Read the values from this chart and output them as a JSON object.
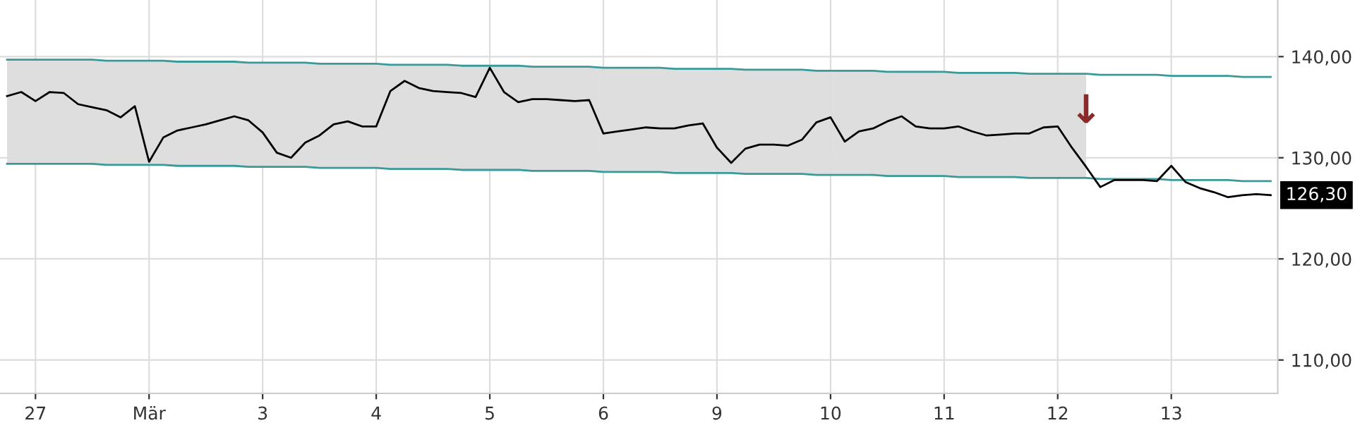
{
  "chart_data": {
    "type": "line",
    "ylim": [
      106.7,
      145.6
    ],
    "categories": [
      null,
      null,
      "27",
      null,
      null,
      null,
      null,
      null,
      null,
      null,
      "Mär",
      null,
      null,
      null,
      null,
      null,
      null,
      null,
      "3",
      null,
      null,
      null,
      null,
      null,
      null,
      null,
      "4",
      null,
      null,
      null,
      null,
      null,
      null,
      null,
      "5",
      null,
      null,
      null,
      null,
      null,
      null,
      null,
      "6",
      null,
      null,
      null,
      null,
      null,
      null,
      null,
      "9",
      null,
      null,
      null,
      null,
      null,
      null,
      null,
      "10",
      null,
      null,
      null,
      null,
      null,
      null,
      null,
      "11",
      null,
      null,
      null,
      null,
      null,
      null,
      null,
      "12",
      null,
      null,
      null,
      null,
      null,
      null,
      null,
      "13",
      null,
      null,
      null,
      null,
      null,
      null,
      null
    ],
    "yticks": [
      {
        "value": 110,
        "label": "110,00"
      },
      {
        "value": 120,
        "label": "120,00"
      },
      {
        "value": 130,
        "label": "130,00"
      },
      {
        "value": 140,
        "label": "140,00"
      }
    ],
    "grid": true,
    "series": [
      {
        "color": "#3a9a9a",
        "upper": [
          139.7,
          139.7,
          139.7,
          139.7,
          139.7,
          139.7,
          139.7,
          139.6,
          139.6,
          139.6,
          139.6,
          139.6,
          139.5,
          139.5,
          139.5,
          139.5,
          139.5,
          139.4,
          139.4,
          139.4,
          139.4,
          139.4,
          139.3,
          139.3,
          139.3,
          139.3,
          139.3,
          139.2,
          139.2,
          139.2,
          139.2,
          139.2,
          139.1,
          139.1,
          139.1,
          139.1,
          139.1,
          139.0,
          139.0,
          139.0,
          139.0,
          139.0,
          138.9,
          138.9,
          138.9,
          138.9,
          138.9,
          138.8,
          138.8,
          138.8,
          138.8,
          138.8,
          138.7,
          138.7,
          138.7,
          138.7,
          138.7,
          138.6,
          138.6,
          138.6,
          138.6,
          138.6,
          138.5,
          138.5,
          138.5,
          138.5,
          138.5,
          138.4,
          138.4,
          138.4,
          138.4,
          138.4,
          138.3,
          138.3,
          138.3,
          138.3,
          138.3,
          null,
          null,
          null,
          null,
          null,
          null,
          null,
          null,
          null,
          null,
          null,
          null,
          null
        ],
        "lower": [
          129.4,
          129.4,
          129.4,
          129.4,
          129.4,
          129.4,
          129.4,
          129.3,
          129.3,
          129.3,
          129.3,
          129.3,
          129.2,
          129.2,
          129.2,
          129.2,
          129.2,
          129.1,
          129.1,
          129.1,
          129.1,
          129.1,
          129.0,
          129.0,
          129.0,
          129.0,
          129.0,
          128.9,
          128.9,
          128.9,
          128.9,
          128.9,
          128.8,
          128.8,
          128.8,
          128.8,
          128.8,
          128.7,
          128.7,
          128.7,
          128.7,
          128.7,
          128.6,
          128.6,
          128.6,
          128.6,
          128.6,
          128.5,
          128.5,
          128.5,
          128.5,
          128.5,
          128.4,
          128.4,
          128.4,
          128.4,
          128.4,
          128.3,
          128.3,
          128.3,
          128.3,
          128.3,
          128.2,
          128.2,
          128.2,
          128.2,
          128.2,
          128.1,
          128.1,
          128.1,
          128.1,
          128.1,
          128.0,
          128.0,
          128.0,
          128.0,
          128.0,
          null,
          null,
          null,
          null,
          null,
          null,
          null,
          null,
          null,
          null,
          null,
          null,
          null
        ],
        "values": [
          129.4,
          129.4,
          129.4,
          129.4,
          129.4,
          129.4,
          129.4,
          129.3,
          129.3,
          129.3,
          129.3,
          129.3,
          129.2,
          129.2,
          129.2,
          129.2,
          129.2,
          129.1,
          129.1,
          129.1,
          129.1,
          129.1,
          129.0,
          129.0,
          129.0,
          129.0,
          129.0,
          128.9,
          128.9,
          128.9,
          128.9,
          128.9,
          128.8,
          128.8,
          128.8,
          128.8,
          128.8,
          128.7,
          128.7,
          128.7,
          128.7,
          128.7,
          128.6,
          128.6,
          128.6,
          128.6,
          128.6,
          128.5,
          128.5,
          128.5,
          128.5,
          128.5,
          128.4,
          128.4,
          128.4,
          128.4,
          128.4,
          128.3,
          128.3,
          128.3,
          128.3,
          128.3,
          128.2,
          128.2,
          128.2,
          128.2,
          128.2,
          128.1,
          128.1,
          128.1,
          128.1,
          128.1,
          128.0,
          128.0,
          128.0,
          128.0,
          128.0,
          127.9,
          127.9,
          127.9,
          127.9,
          127.9,
          127.8,
          127.8,
          127.8,
          127.8,
          127.8,
          127.7,
          127.7,
          127.7
        ]
      },
      {
        "color": "#3a9a9a",
        "values": [
          139.7,
          139.7,
          139.7,
          139.7,
          139.7,
          139.7,
          139.7,
          139.6,
          139.6,
          139.6,
          139.6,
          139.6,
          139.5,
          139.5,
          139.5,
          139.5,
          139.5,
          139.4,
          139.4,
          139.4,
          139.4,
          139.4,
          139.3,
          139.3,
          139.3,
          139.3,
          139.3,
          139.2,
          139.2,
          139.2,
          139.2,
          139.2,
          139.1,
          139.1,
          139.1,
          139.1,
          139.1,
          139.0,
          139.0,
          139.0,
          139.0,
          139.0,
          138.9,
          138.9,
          138.9,
          138.9,
          138.9,
          138.8,
          138.8,
          138.8,
          138.8,
          138.8,
          138.7,
          138.7,
          138.7,
          138.7,
          138.7,
          138.6,
          138.6,
          138.6,
          138.6,
          138.6,
          138.5,
          138.5,
          138.5,
          138.5,
          138.5,
          138.4,
          138.4,
          138.4,
          138.4,
          138.4,
          138.3,
          138.3,
          138.3,
          138.3,
          138.3,
          138.2,
          138.2,
          138.2,
          138.2,
          138.2,
          138.1,
          138.1,
          138.1,
          138.1,
          138.1,
          138.0,
          138.0,
          138.0
        ]
      },
      {
        "color": "#000000",
        "values": [
          136.1,
          136.5,
          135.6,
          136.5,
          136.4,
          135.3,
          135.0,
          134.7,
          134.0,
          135.1,
          129.6,
          132.0,
          132.7,
          133.0,
          133.3,
          133.7,
          134.1,
          133.7,
          132.5,
          130.5,
          130.0,
          131.5,
          132.2,
          133.3,
          133.6,
          133.1,
          133.1,
          136.6,
          137.6,
          136.9,
          136.6,
          136.5,
          136.4,
          136.0,
          138.9,
          136.5,
          135.5,
          135.8,
          135.8,
          135.7,
          135.6,
          135.7,
          132.4,
          132.6,
          132.8,
          133.0,
          132.9,
          132.9,
          133.2,
          133.4,
          131.0,
          129.5,
          130.9,
          131.3,
          131.3,
          131.2,
          131.8,
          133.5,
          134.0,
          131.6,
          132.6,
          132.9,
          133.6,
          134.1,
          133.1,
          132.9,
          132.9,
          133.1,
          132.6,
          132.2,
          132.3,
          132.4,
          132.4,
          133.0,
          133.1,
          131.0,
          129.1,
          127.1,
          127.8,
          127.8,
          127.8,
          127.7,
          129.2,
          127.6,
          127.0,
          126.6,
          126.1,
          126.3,
          126.4,
          126.3
        ]
      }
    ],
    "annotations": [
      "↓",
      "126,30"
    ]
  }
}
